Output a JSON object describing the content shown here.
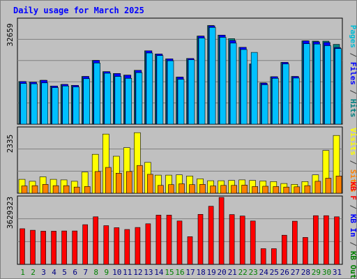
{
  "colors": {
    "background": "#c0c0c0",
    "title": "#0000ff",
    "grid": "#808080",
    "hits_front": "#00c0ff",
    "hits_back": "#008080",
    "files_front": "#00c0ff",
    "files_back": "#0000ff",
    "pages_back": "#00bcd4",
    "visits": "#ffff00",
    "sites": "#ff8000",
    "kb": "#ff0000",
    "weekend_label": "#008000",
    "weekday_label": "#000080"
  },
  "chart_data": {
    "title": "Daily usage for March 2025",
    "categories": [
      "1",
      "2",
      "3",
      "4",
      "5",
      "6",
      "7",
      "8",
      "9",
      "10",
      "11",
      "12",
      "13",
      "14",
      "15",
      "16",
      "17",
      "18",
      "19",
      "20",
      "21",
      "22",
      "23",
      "24",
      "25",
      "26",
      "27",
      "28",
      "29",
      "30",
      "31"
    ],
    "weekend_days": [
      "1",
      "2",
      "8",
      "9",
      "15",
      "16",
      "22",
      "23",
      "29",
      "30"
    ],
    "panels": [
      {
        "type": "bar",
        "ymax_label": "32659",
        "ylim": [
          0,
          32659
        ],
        "legend": [
          {
            "text": "Pages",
            "color": "#00bcd4"
          },
          {
            "text": " / ",
            "color": "#404040"
          },
          {
            "text": "Files",
            "color": "#0000ff"
          },
          {
            "text": " / ",
            "color": "#404040"
          },
          {
            "text": "Hits",
            "color": "#008080"
          }
        ],
        "series": [
          {
            "name": "Hits",
            "values": [
              13300,
              13100,
              13700,
              11900,
              12400,
              12100,
              14900,
              19900,
              16400,
              15800,
              15300,
              16800,
              22900,
              21900,
              20400,
              14700,
              20500,
              27500,
              30800,
              27800,
              26700,
              24000,
              18800,
              12900,
              14800,
              19300,
              14900,
              26000,
              25900,
              25900,
              24900
            ]
          },
          {
            "name": "Files",
            "values": [
              13300,
              13100,
              13700,
              11900,
              12400,
              12100,
              14900,
              19900,
              16400,
              15800,
              15300,
              16800,
              22900,
              21900,
              20400,
              14700,
              20500,
              27500,
              30700,
              27800,
              26100,
              24000,
              18800,
              12800,
              14800,
              19300,
              14900,
              26000,
              25700,
              25500,
              23900
            ]
          },
          {
            "name": "Pages",
            "values": [
              12700,
              12600,
              12900,
              11400,
              11900,
              11600,
              14200,
              19100,
              15900,
              14900,
              14300,
              16100,
              22200,
              21400,
              19800,
              14000,
              20100,
              26900,
              30200,
              27100,
              25300,
              23300,
              22400,
              12300,
              14300,
              18800,
              14400,
              25100,
              25000,
              24500,
              23600
            ]
          }
        ]
      },
      {
        "type": "bar",
        "ymax_label": "2335",
        "ylim": [
          0,
          2335
        ],
        "legend": [
          {
            "text": "Visits",
            "color": "#ffff00"
          },
          {
            "text": " / ",
            "color": "#404040"
          },
          {
            "text": "Sites",
            "color": "#ff8000"
          }
        ],
        "series": [
          {
            "name": "Visits",
            "values": [
              500,
              430,
              590,
              500,
              480,
              430,
              760,
              1400,
              2130,
              1330,
              1640,
              2180,
              1110,
              650,
              650,
              660,
              620,
              520,
              450,
              450,
              460,
              480,
              460,
              440,
              420,
              350,
              320,
              420,
              660,
              1540,
              2080
            ]
          },
          {
            "name": "Sites",
            "values": [
              260,
              270,
              320,
              270,
              270,
              220,
              240,
              780,
              930,
              720,
              780,
              1000,
              680,
              280,
              310,
              340,
              310,
              320,
              260,
              280,
              280,
              290,
              240,
              250,
              240,
              220,
              230,
              270,
              430,
              540,
              620
            ]
          }
        ]
      },
      {
        "type": "bar",
        "ymax_label": "3629323",
        "ylim": [
          0,
          3629323
        ],
        "legend": [
          {
            "text": "KB F",
            "color": "#ff0000"
          },
          {
            "text": " / ",
            "color": "#404040"
          },
          {
            "text": "KB In",
            "color": "#0000ff"
          },
          {
            "text": " / ",
            "color": "#404040"
          },
          {
            "text": "KB Out",
            "color": "#008000"
          }
        ],
        "series": [
          {
            "name": "KB F",
            "values": [
              1930000,
              1850000,
              1800000,
              1800000,
              1810000,
              1810000,
              2150000,
              2580000,
              2100000,
              1990000,
              1890000,
              2000000,
              2200000,
              2670000,
              2670000,
              2350000,
              1500000,
              2710000,
              3150000,
              3629323,
              2700000,
              2620000,
              2350000,
              850000,
              850000,
              1580000,
              2340000,
              1460000,
              2640000,
              2640000,
              2580000
            ]
          }
        ]
      }
    ]
  }
}
